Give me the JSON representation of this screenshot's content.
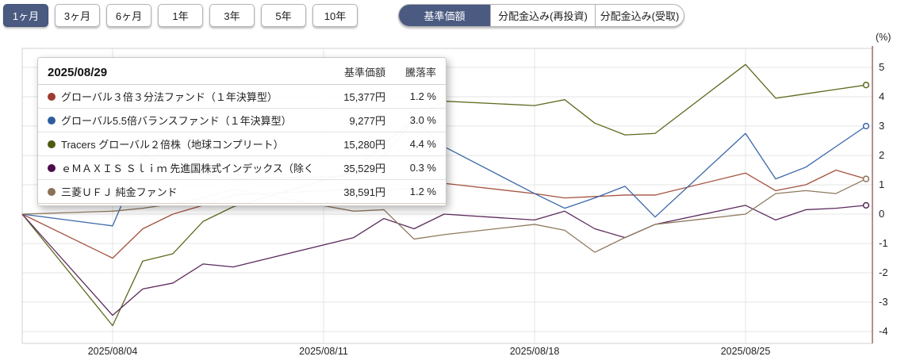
{
  "toolbar": {
    "periods": [
      {
        "label": "1ヶ月",
        "selected": true
      },
      {
        "label": "3ヶ月",
        "selected": false
      },
      {
        "label": "6ヶ月",
        "selected": false
      },
      {
        "label": "1年",
        "selected": false
      },
      {
        "label": "3年",
        "selected": false
      },
      {
        "label": "5年",
        "selected": false
      },
      {
        "label": "10年",
        "selected": false
      }
    ],
    "price_modes": [
      {
        "label": "基準価額",
        "selected": true
      },
      {
        "label": "分配金込み(再投資)",
        "selected": false
      },
      {
        "label": "分配金込み(受取)",
        "selected": false
      }
    ]
  },
  "tooltip": {
    "date": "2025/08/29",
    "col_nav": "基準価額",
    "col_change": "騰落率",
    "rows": [
      {
        "name": "グローバル３倍３分法ファンド（１年決算型）",
        "nav": "15,377円",
        "change": "1.2 %",
        "color": "#9e3b31"
      },
      {
        "name": "グローバル5.5倍バランスファンド（１年決算型）",
        "nav": "9,277円",
        "change": "3.0 %",
        "color": "#2e5d9f"
      },
      {
        "name": "Tracers グローバル２倍株（地球コンプリート）",
        "nav": "15,280円",
        "change": "4.4 %",
        "color": "#4d5a12"
      },
      {
        "name": "ｅＭＡＸＩＳ Ｓｌｉｍ 先進国株式インデックス（除く...",
        "nav": "35,529円",
        "change": "0.3 %",
        "color": "#4b0d4b"
      },
      {
        "name": "三菱ＵＦＪ 純金ファンド",
        "nav": "38,591円",
        "change": "1.2 %",
        "color": "#8a7156"
      }
    ]
  },
  "chart_data": {
    "type": "line",
    "unit_label": "(%)",
    "grid": true,
    "legend_position": "tooltip-overlay",
    "x": [
      "2025/08/01",
      "2025/08/04",
      "2025/08/05",
      "2025/08/06",
      "2025/08/07",
      "2025/08/08",
      "2025/08/12",
      "2025/08/13",
      "2025/08/14",
      "2025/08/15",
      "2025/08/18",
      "2025/08/19",
      "2025/08/20",
      "2025/08/21",
      "2025/08/22",
      "2025/08/25",
      "2025/08/26",
      "2025/08/27",
      "2025/08/28",
      "2025/08/29"
    ],
    "x_tick_labels": [
      "2025/08/04",
      "2025/08/11",
      "2025/08/18",
      "2025/08/25"
    ],
    "y_ticks": [
      5,
      4,
      3,
      2,
      1,
      0,
      -1,
      -2,
      -3,
      -4
    ],
    "ylim": [
      -4.4,
      5.6
    ],
    "ylabel": "(%)",
    "series": [
      {
        "name": "グローバル３倍３分法ファンド（１年決算型）",
        "color": "#a5523f",
        "values": [
          0,
          -1.5,
          -0.5,
          0.0,
          0.3,
          0.65,
          0.85,
          0.8,
          0.9,
          1.05,
          0.7,
          0.55,
          0.6,
          0.65,
          0.65,
          1.4,
          0.8,
          1.0,
          1.5,
          1.2
        ]
      },
      {
        "name": "グローバル5.5倍バランスファンド（１年決算型）",
        "color": "#3a67a8",
        "values": [
          0,
          -0.4,
          2.0,
          1.6,
          1.4,
          1.2,
          1.3,
          2.0,
          3.2,
          2.3,
          0.7,
          0.2,
          0.55,
          0.95,
          -0.1,
          2.75,
          1.2,
          1.6,
          2.3,
          3.0
        ]
      },
      {
        "name": "Tracers グローバル２倍株（地球コンプリート）",
        "color": "#5c6a1e",
        "values": [
          0,
          -3.8,
          -1.6,
          -1.35,
          -0.25,
          0.25,
          1.45,
          2.4,
          3.2,
          3.85,
          3.7,
          3.9,
          3.1,
          2.7,
          2.75,
          5.1,
          3.95,
          4.1,
          4.25,
          4.4
        ]
      },
      {
        "name": "ｅＭＡＸＩＳ Ｓｌｉｍ 先進国株式インデックス（除く...",
        "color": "#5c2a5c",
        "values": [
          0,
          -3.45,
          -2.55,
          -2.35,
          -1.7,
          -1.8,
          -0.8,
          -0.15,
          -0.5,
          0.0,
          -0.2,
          0.1,
          -0.5,
          -0.8,
          -0.35,
          0.3,
          -0.2,
          0.15,
          0.2,
          0.3
        ]
      },
      {
        "name": "三菱ＵＦＪ 純金ファンド",
        "color": "#8f7a5e",
        "values": [
          0,
          0.1,
          0.2,
          0.35,
          0.55,
          0.85,
          0.1,
          0.15,
          -0.85,
          -0.7,
          -0.35,
          -0.55,
          -1.3,
          -0.8,
          -0.35,
          0.0,
          0.7,
          0.8,
          0.7,
          1.2
        ]
      }
    ]
  },
  "colors": {
    "accent_navy": "#4a5a80",
    "grid_line": "#e4e4e4",
    "plot_border": "#d0d0d0",
    "right_axis": "#916060",
    "tick_text": "#222222"
  }
}
